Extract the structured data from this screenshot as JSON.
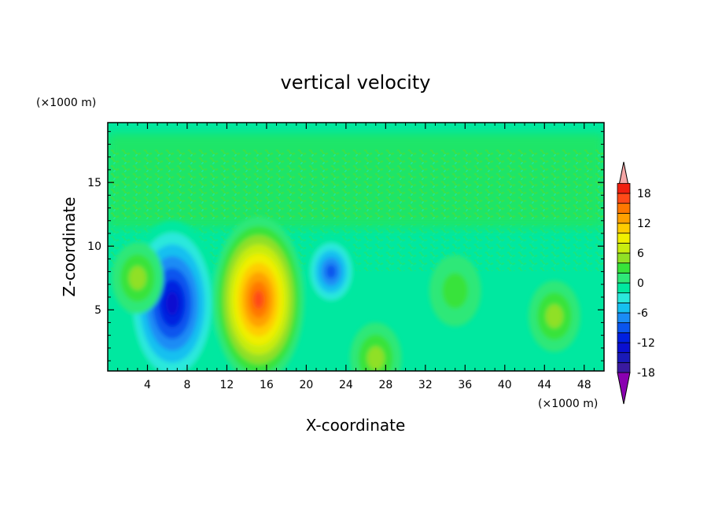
{
  "chart_data": {
    "type": "heatmap",
    "title": "vertical velocity",
    "xlabel": "X-coordinate",
    "ylabel": "Z-coordinate",
    "x_unit_label": "(×1000 m)",
    "y_unit_label": "(×1000 m)",
    "xlim": [
      0,
      50
    ],
    "ylim": [
      0.2,
      19.7
    ],
    "x_ticks": [
      "4",
      "8",
      "12",
      "16",
      "20",
      "24",
      "28",
      "32",
      "36",
      "40",
      "44",
      "48"
    ],
    "x_tick_values": [
      4,
      8,
      12,
      16,
      20,
      24,
      28,
      32,
      36,
      40,
      44,
      48
    ],
    "y_ticks": [
      "5",
      "10",
      "15"
    ],
    "y_tick_values": [
      5,
      10,
      15
    ],
    "colorbar": {
      "levels": [
        -20,
        -18,
        -16,
        -14,
        -12,
        -10,
        -8,
        -6,
        -4,
        -2,
        0,
        2,
        4,
        6,
        8,
        10,
        12,
        14,
        16,
        18,
        20
      ],
      "labels": [
        "18",
        "12",
        "6",
        "0",
        "-6",
        "-12",
        "-18"
      ],
      "label_values": [
        18,
        12,
        6,
        0,
        -6,
        -12,
        -18
      ],
      "colors": [
        "#8a00b0",
        "#3a1aa0",
        "#1a1ab8",
        "#0a10d0",
        "#0020e0",
        "#0a55ee",
        "#1a8cf5",
        "#16c0f0",
        "#2ae8dc",
        "#00e8a0",
        "#2ee878",
        "#38e33a",
        "#90e025",
        "#c8ec10",
        "#f0ef00",
        "#ffcc00",
        "#ffa000",
        "#ff7800",
        "#ff4a18",
        "#f02010",
        "#f4a6a6"
      ]
    },
    "features": [
      {
        "x": 6.5,
        "z": 5.5,
        "value": -14
      },
      {
        "x": 15.2,
        "z": 5.8,
        "value": 18
      },
      {
        "x": 22.5,
        "z": 8.0,
        "value": -10
      },
      {
        "x": 35.0,
        "z": 6.5,
        "value": 4
      },
      {
        "x": 45.0,
        "z": 4.5,
        "value": 6
      },
      {
        "x": 3.0,
        "z": 7.5,
        "value": 6
      },
      {
        "x": 27.0,
        "z": 1.2,
        "value": 6
      }
    ]
  }
}
